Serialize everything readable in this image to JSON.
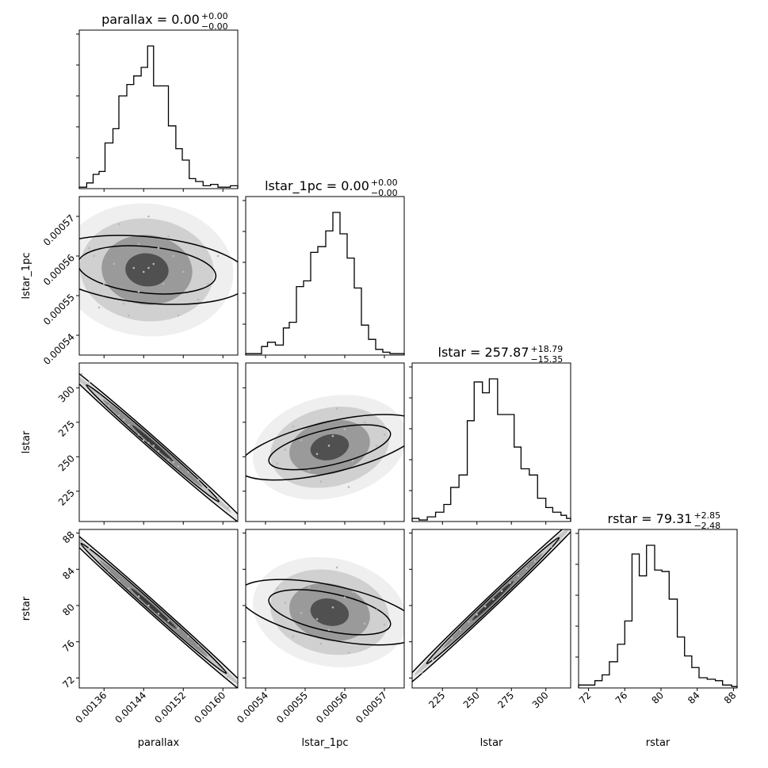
{
  "chart_data": [
    {
      "type": "histogram",
      "variable": "parallax",
      "title": "parallax = 0.00",
      "title_sup": "+0.00",
      "title_sub": "−0.00",
      "xrange": [
        0.00131,
        0.00163
      ],
      "bins": [
        {
          "x0": 0.00131,
          "x1": 0.001325,
          "count": 1
        },
        {
          "x0": 0.001325,
          "x1": 0.001338,
          "count": 4
        },
        {
          "x0": 0.001338,
          "x1": 0.00135,
          "count": 10
        },
        {
          "x0": 0.00135,
          "x1": 0.001362,
          "count": 12
        },
        {
          "x0": 0.001362,
          "x1": 0.001378,
          "count": 32
        },
        {
          "x0": 0.001378,
          "x1": 0.00139,
          "count": 42
        },
        {
          "x0": 0.00139,
          "x1": 0.001406,
          "count": 65
        },
        {
          "x0": 0.001406,
          "x1": 0.00142,
          "count": 73
        },
        {
          "x0": 0.00142,
          "x1": 0.001435,
          "count": 79
        },
        {
          "x0": 0.001435,
          "x1": 0.001448,
          "count": 85
        },
        {
          "x0": 0.001448,
          "x1": 0.00146,
          "count": 100
        },
        {
          "x0": 0.00146,
          "x1": 0.001475,
          "count": 72
        },
        {
          "x0": 0.001475,
          "x1": 0.00149,
          "count": 72
        },
        {
          "x0": 0.00149,
          "x1": 0.001505,
          "count": 44
        },
        {
          "x0": 0.001505,
          "x1": 0.001518,
          "count": 28
        },
        {
          "x0": 0.001518,
          "x1": 0.001532,
          "count": 20
        },
        {
          "x0": 0.001532,
          "x1": 0.001545,
          "count": 7
        },
        {
          "x0": 0.001545,
          "x1": 0.00156,
          "count": 5
        },
        {
          "x0": 0.00156,
          "x1": 0.001575,
          "count": 2
        },
        {
          "x0": 0.001575,
          "x1": 0.00159,
          "count": 3
        },
        {
          "x0": 0.00159,
          "x1": 0.001615,
          "count": 1
        },
        {
          "x0": 0.001615,
          "x1": 0.00163,
          "count": 2
        }
      ]
    },
    {
      "type": "histogram",
      "variable": "lstar_1pc",
      "title": "lstar_1pc = 0.00",
      "title_sup": "+0.00",
      "title_sub": "−0.00",
      "xrange": [
        0.000535,
        0.000575
      ],
      "bins": [
        {
          "x0": 0.000535,
          "x1": 0.000537,
          "count": 1
        },
        {
          "x0": 0.000537,
          "x1": 0.000539,
          "count": 1
        },
        {
          "x0": 0.000539,
          "x1": 0.0005405,
          "count": 6
        },
        {
          "x0": 0.0005405,
          "x1": 0.0005425,
          "count": 9
        },
        {
          "x0": 0.0005425,
          "x1": 0.0005445,
          "count": 7
        },
        {
          "x0": 0.0005445,
          "x1": 0.000546,
          "count": 19
        },
        {
          "x0": 0.000546,
          "x1": 0.0005478,
          "count": 23
        },
        {
          "x0": 0.0005478,
          "x1": 0.0005496,
          "count": 48
        },
        {
          "x0": 0.0005496,
          "x1": 0.0005514,
          "count": 52
        },
        {
          "x0": 0.0005514,
          "x1": 0.0005532,
          "count": 72
        },
        {
          "x0": 0.0005532,
          "x1": 0.0005552,
          "count": 76
        },
        {
          "x0": 0.0005552,
          "x1": 0.000557,
          "count": 87
        },
        {
          "x0": 0.000557,
          "x1": 0.0005588,
          "count": 100
        },
        {
          "x0": 0.0005588,
          "x1": 0.0005606,
          "count": 85
        },
        {
          "x0": 0.0005606,
          "x1": 0.0005624,
          "count": 68
        },
        {
          "x0": 0.0005624,
          "x1": 0.0005642,
          "count": 47
        },
        {
          "x0": 0.0005642,
          "x1": 0.000566,
          "count": 21
        },
        {
          "x0": 0.000566,
          "x1": 0.0005678,
          "count": 11
        },
        {
          "x0": 0.0005678,
          "x1": 0.0005696,
          "count": 4
        },
        {
          "x0": 0.0005696,
          "x1": 0.0005714,
          "count": 2
        },
        {
          "x0": 0.0005714,
          "x1": 0.000575,
          "count": 1
        }
      ]
    },
    {
      "type": "histogram",
      "variable": "lstar",
      "title": "lstar = 257.87",
      "title_sup": "+18.79",
      "title_sub": "−15.35",
      "xrange": [
        203,
        318
      ],
      "bins": [
        {
          "x0": 203,
          "x1": 208,
          "count": 2
        },
        {
          "x0": 208,
          "x1": 214,
          "count": 1
        },
        {
          "x0": 214,
          "x1": 220,
          "count": 3
        },
        {
          "x0": 220,
          "x1": 226,
          "count": 6
        },
        {
          "x0": 226,
          "x1": 231,
          "count": 11
        },
        {
          "x0": 231,
          "x1": 237,
          "count": 22
        },
        {
          "x0": 237,
          "x1": 243,
          "count": 30
        },
        {
          "x0": 243,
          "x1": 248,
          "count": 65
        },
        {
          "x0": 248,
          "x1": 254,
          "count": 90
        },
        {
          "x0": 254,
          "x1": 259,
          "count": 83
        },
        {
          "x0": 259,
          "x1": 265,
          "count": 92
        },
        {
          "x0": 265,
          "x1": 271,
          "count": 69
        },
        {
          "x0": 271,
          "x1": 277,
          "count": 69
        },
        {
          "x0": 277,
          "x1": 282,
          "count": 48
        },
        {
          "x0": 282,
          "x1": 288,
          "count": 34
        },
        {
          "x0": 288,
          "x1": 294,
          "count": 30
        },
        {
          "x0": 294,
          "x1": 300,
          "count": 15
        },
        {
          "x0": 300,
          "x1": 305,
          "count": 9
        },
        {
          "x0": 305,
          "x1": 311,
          "count": 6
        },
        {
          "x0": 311,
          "x1": 315,
          "count": 4
        },
        {
          "x0": 315,
          "x1": 318,
          "count": 2
        }
      ]
    },
    {
      "type": "histogram",
      "variable": "rstar",
      "title": "rstar = 79.31",
      "title_sup": "+2.85",
      "title_sub": "−2.48",
      "xrange": [
        70.9,
        88.4
      ],
      "bins": [
        {
          "x0": 70.9,
          "x1": 71.8,
          "count": 2
        },
        {
          "x0": 71.8,
          "x1": 72.7,
          "count": 2
        },
        {
          "x0": 72.7,
          "x1": 73.5,
          "count": 5
        },
        {
          "x0": 73.5,
          "x1": 74.3,
          "count": 9
        },
        {
          "x0": 74.3,
          "x1": 75.2,
          "count": 18
        },
        {
          "x0": 75.2,
          "x1": 76.0,
          "count": 30
        },
        {
          "x0": 76.0,
          "x1": 76.8,
          "count": 46
        },
        {
          "x0": 76.8,
          "x1": 77.6,
          "count": 92
        },
        {
          "x0": 77.6,
          "x1": 78.4,
          "count": 77
        },
        {
          "x0": 78.4,
          "x1": 79.3,
          "count": 98
        },
        {
          "x0": 79.3,
          "x1": 80.1,
          "count": 81
        },
        {
          "x0": 80.1,
          "x1": 80.9,
          "count": 80
        },
        {
          "x0": 80.9,
          "x1": 81.8,
          "count": 61
        },
        {
          "x0": 81.8,
          "x1": 82.6,
          "count": 35
        },
        {
          "x0": 82.6,
          "x1": 83.4,
          "count": 22
        },
        {
          "x0": 83.4,
          "x1": 84.2,
          "count": 14
        },
        {
          "x0": 84.2,
          "x1": 85.1,
          "count": 7
        },
        {
          "x0": 85.1,
          "x1": 86.0,
          "count": 6
        },
        {
          "x0": 86.0,
          "x1": 86.8,
          "count": 5
        },
        {
          "x0": 86.8,
          "x1": 87.8,
          "count": 2
        },
        {
          "x0": 87.8,
          "x1": 88.4,
          "count": 1
        }
      ]
    },
    {
      "type": "scatter",
      "x_variable": "parallax",
      "y_variable": "lstar_1pc",
      "xrange": [
        0.00131,
        0.00163
      ],
      "yrange": [
        0.000535,
        0.000575
      ],
      "points": [
        [
          0.00145,
          0.000557
        ],
        [
          0.00144,
          0.000556
        ],
        [
          0.00146,
          0.000558
        ],
        [
          0.00142,
          0.000557
        ],
        [
          0.00148,
          0.000553
        ],
        [
          0.00143,
          0.000551
        ],
        [
          0.00138,
          0.000558
        ],
        [
          0.0015,
          0.00056
        ],
        [
          0.00147,
          0.000562
        ],
        [
          0.0014,
          0.000548
        ],
        [
          0.00152,
          0.000556
        ],
        [
          0.00136,
          0.000553
        ],
        [
          0.00149,
          0.000565
        ],
        [
          0.00134,
          0.00056
        ],
        [
          0.00155,
          0.000549
        ],
        [
          0.00141,
          0.000545
        ],
        [
          0.00157,
          0.000553
        ],
        [
          0.00133,
          0.000562
        ],
        [
          0.00139,
          0.000568
        ],
        [
          0.00151,
          0.000545
        ],
        [
          0.00145,
          0.00057
        ],
        [
          0.00159,
          0.00056
        ],
        [
          0.00135,
          0.000547
        ],
        [
          0.00143,
          0.000563
        ]
      ]
    },
    {
      "type": "scatter",
      "x_variable": "parallax",
      "y_variable": "lstar",
      "xrange": [
        0.00131,
        0.00163
      ],
      "yrange": [
        203,
        318
      ],
      "points": [
        [
          0.001315,
          310
        ],
        [
          0.00133,
          304
        ],
        [
          0.00135,
          295
        ],
        [
          0.00137,
          287
        ],
        [
          0.00139,
          280
        ],
        [
          0.00141,
          273
        ],
        [
          0.00143,
          266
        ],
        [
          0.00145,
          260
        ],
        [
          0.00147,
          254
        ],
        [
          0.00149,
          248
        ],
        [
          0.00151,
          243
        ],
        [
          0.00153,
          239
        ],
        [
          0.00155,
          233
        ],
        [
          0.00157,
          227
        ],
        [
          0.00159,
          220
        ],
        [
          0.00161,
          213
        ],
        [
          0.00144,
          262
        ],
        [
          0.00146,
          258
        ],
        [
          0.0014,
          277
        ],
        [
          0.0015,
          246
        ]
      ]
    },
    {
      "type": "scatter",
      "x_variable": "lstar_1pc",
      "y_variable": "lstar",
      "xrange": [
        0.000535,
        0.000575
      ],
      "yrange": [
        203,
        318
      ],
      "points": [
        [
          0.000557,
          265
        ],
        [
          0.000553,
          252
        ],
        [
          0.00056,
          270
        ],
        [
          0.000556,
          258
        ],
        [
          0.000549,
          262
        ],
        [
          0.000562,
          247
        ],
        [
          0.000551,
          240
        ],
        [
          0.000565,
          275
        ],
        [
          0.000545,
          255
        ],
        [
          0.000558,
          285
        ],
        [
          0.000554,
          232
        ],
        [
          0.000568,
          258
        ],
        [
          0.000547,
          272
        ],
        [
          0.000561,
          228
        ],
        [
          0.000543,
          245
        ],
        [
          0.00057,
          266
        ]
      ]
    },
    {
      "type": "scatter",
      "x_variable": "parallax",
      "y_variable": "rstar",
      "xrange": [
        0.00131,
        0.00163
      ],
      "yrange": [
        70.9,
        88.4
      ],
      "points": [
        [
          0.001315,
          87.2
        ],
        [
          0.00133,
          86.3
        ],
        [
          0.00135,
          85.0
        ],
        [
          0.00137,
          83.8
        ],
        [
          0.00139,
          82.8
        ],
        [
          0.00141,
          81.9
        ],
        [
          0.00143,
          81.0
        ],
        [
          0.00145,
          80.0
        ],
        [
          0.00147,
          79.1
        ],
        [
          0.00149,
          78.3
        ],
        [
          0.00151,
          77.5
        ],
        [
          0.00153,
          76.6
        ],
        [
          0.00155,
          75.6
        ],
        [
          0.00157,
          74.4
        ],
        [
          0.00159,
          73.3
        ],
        [
          0.00161,
          72.1
        ]
      ]
    },
    {
      "type": "scatter",
      "x_variable": "lstar_1pc",
      "y_variable": "rstar",
      "xrange": [
        0.000535,
        0.000575
      ],
      "yrange": [
        70.9,
        88.4
      ],
      "points": [
        [
          0.000557,
          79.8
        ],
        [
          0.000553,
          78.5
        ],
        [
          0.00056,
          80.9
        ],
        [
          0.000556,
          77.3
        ],
        [
          0.000549,
          79.2
        ],
        [
          0.000562,
          81.5
        ],
        [
          0.000551,
          82.0
        ],
        [
          0.000565,
          78.0
        ],
        [
          0.000545,
          80.3
        ],
        [
          0.000558,
          84.2
        ],
        [
          0.000554,
          75.8
        ],
        [
          0.000568,
          79.5
        ],
        [
          0.000547,
          76.6
        ],
        [
          0.000561,
          74.8
        ],
        [
          0.000543,
          81.9
        ],
        [
          0.00057,
          77.9
        ]
      ]
    },
    {
      "type": "scatter",
      "x_variable": "lstar",
      "y_variable": "rstar",
      "xrange": [
        203,
        318
      ],
      "yrange": [
        70.9,
        88.4
      ],
      "points": [
        [
          210,
          72.6
        ],
        [
          218,
          74.0
        ],
        [
          225,
          75.2
        ],
        [
          232,
          76.4
        ],
        [
          238,
          77.3
        ],
        [
          244,
          78.2
        ],
        [
          250,
          79.0
        ],
        [
          256,
          79.9
        ],
        [
          262,
          80.7
        ],
        [
          268,
          81.6
        ],
        [
          274,
          82.5
        ],
        [
          280,
          83.3
        ],
        [
          286,
          84.1
        ],
        [
          292,
          84.9
        ],
        [
          298,
          85.7
        ],
        [
          304,
          86.5
        ],
        [
          310,
          87.2
        ]
      ]
    }
  ],
  "axes": {
    "parallax": {
      "label": "parallax",
      "ticks": [
        {
          "value": 0.00136,
          "label": "0.00136"
        },
        {
          "value": 0.00144,
          "label": "0.00144"
        },
        {
          "value": 0.00152,
          "label": "0.00152"
        },
        {
          "value": 0.0016,
          "label": "0.00160"
        }
      ]
    },
    "lstar_1pc": {
      "label": "lstar_1pc",
      "ticks": [
        {
          "value": 0.00054,
          "label": "0.00054"
        },
        {
          "value": 0.00055,
          "label": "0.00055"
        },
        {
          "value": 0.00056,
          "label": "0.00056"
        },
        {
          "value": 0.00057,
          "label": "0.00057"
        }
      ]
    },
    "lstar": {
      "label": "lstar",
      "ticks": [
        {
          "value": 225,
          "label": "225"
        },
        {
          "value": 250,
          "label": "250"
        },
        {
          "value": 275,
          "label": "275"
        },
        {
          "value": 300,
          "label": "300"
        }
      ]
    },
    "rstar": {
      "label": "rstar",
      "ticks": [
        {
          "value": 72,
          "label": "72"
        },
        {
          "value": 76,
          "label": "76"
        },
        {
          "value": 80,
          "label": "80"
        },
        {
          "value": 84,
          "label": "84"
        },
        {
          "value": 88,
          "label": "88"
        }
      ]
    }
  },
  "colors": {
    "line": "#000000",
    "point": "#b8b8b8",
    "density_dark": "#000000",
    "density_light": "#f2f2f2"
  }
}
